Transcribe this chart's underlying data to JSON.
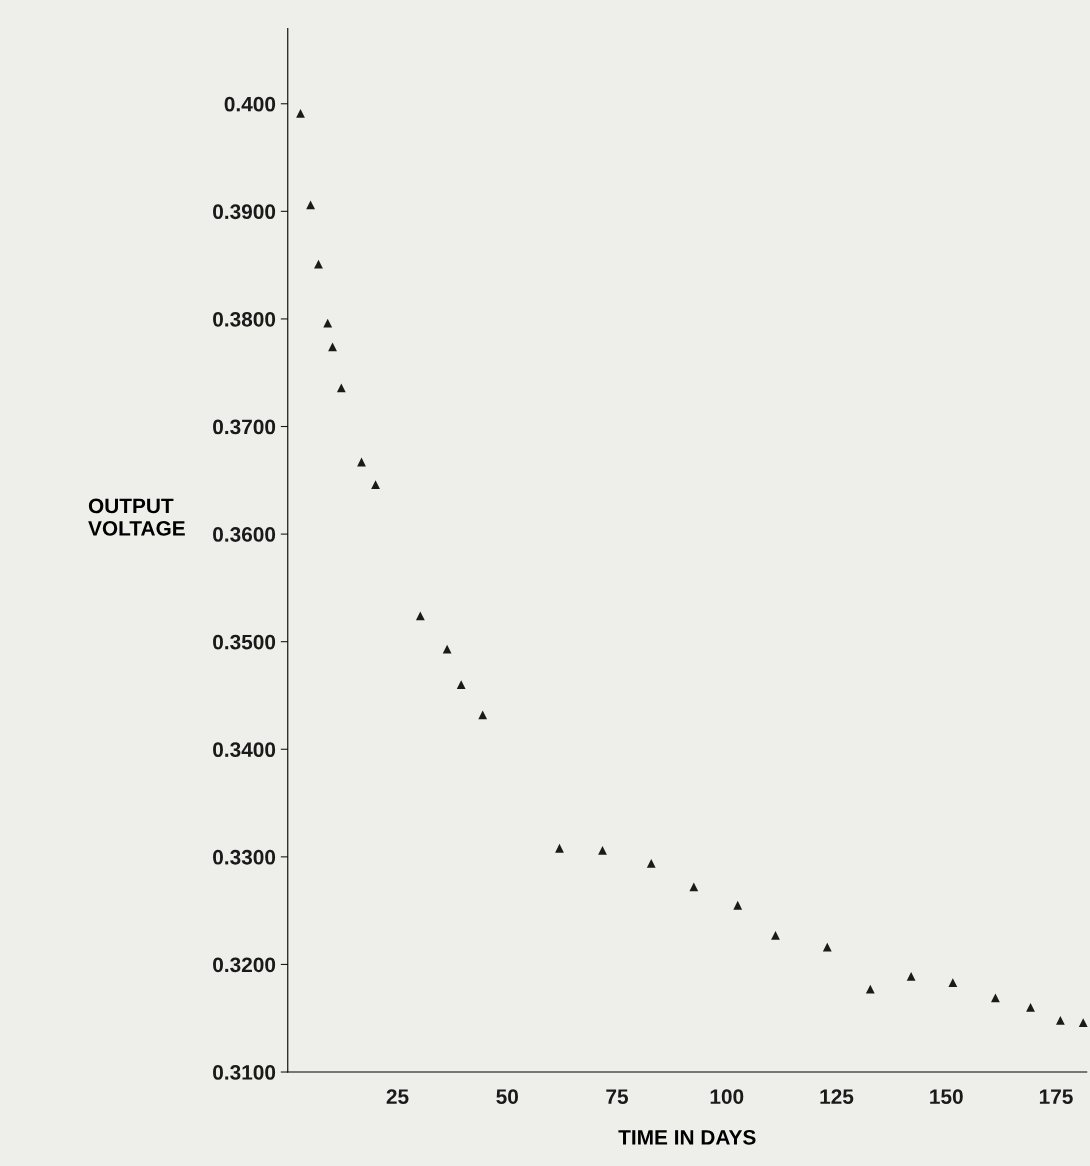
{
  "chart_data": {
    "type": "scatter",
    "xlabel": "TIME IN DAYS",
    "ylabel": "OUTPUT\nVOLTAGE",
    "x": [
      2.9,
      5.2,
      7.0,
      9.1,
      10.2,
      12.2,
      16.8,
      20.0,
      30.2,
      36.3,
      39.5,
      44.4,
      61.9,
      71.7,
      82.8,
      92.5,
      102.5,
      111.1,
      122.9,
      132.7,
      142.0,
      151.5,
      161.2,
      169.2,
      176.0,
      181.2
    ],
    "series": [
      {
        "color": "#1a1a1a",
        "values": [
          0.3991,
          0.3906,
          0.3851,
          0.3796,
          0.3774,
          0.3736,
          0.3667,
          0.3646,
          0.3524,
          0.3493,
          0.346,
          0.3432,
          0.3308,
          0.3306,
          0.3294,
          0.3272,
          0.3255,
          0.3227,
          0.3216,
          0.3177,
          0.3189,
          0.3183,
          0.3169,
          0.316,
          0.3148,
          0.3146
        ]
      }
    ],
    "marker": "triangle",
    "grid": false,
    "xlim": [
      0,
      182
    ],
    "xticks": [
      25,
      50,
      75,
      100,
      125,
      150,
      175
    ],
    "ylim": [
      0.31,
      0.407
    ],
    "yticks": [
      {
        "value": 0.31,
        "label": "0.3100"
      },
      {
        "value": 0.32,
        "label": "0.3200"
      },
      {
        "value": 0.33,
        "label": "0.3300"
      },
      {
        "value": 0.34,
        "label": "0.3400"
      },
      {
        "value": 0.35,
        "label": "0.3500"
      },
      {
        "value": 0.36,
        "label": "0.3600"
      },
      {
        "value": 0.37,
        "label": "0.3700"
      },
      {
        "value": 0.38,
        "label": "0.3800"
      },
      {
        "value": 0.39,
        "label": "0.3900"
      },
      {
        "value": 0.4,
        "label": "0.400"
      }
    ]
  }
}
